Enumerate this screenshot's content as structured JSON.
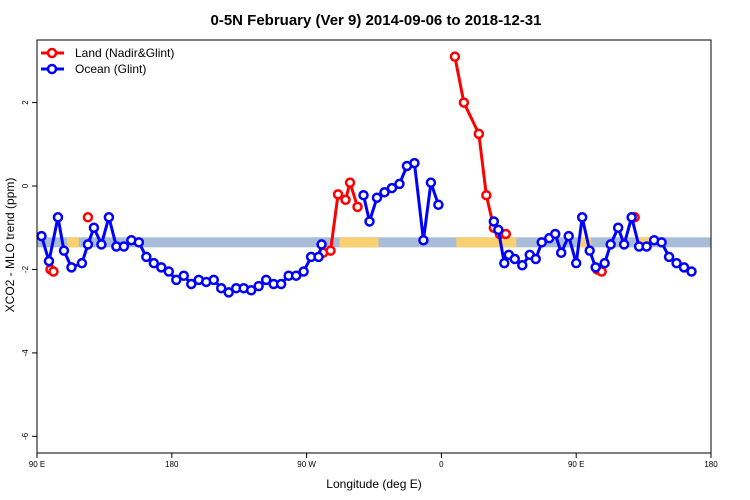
{
  "chart_data": {
    "type": "line",
    "title": "0-5N February (Ver 9)   2014-09-06 to 2018-12-31",
    "xlabel": "Longitude (deg E)",
    "ylabel": "XCO2 - MLO trend (ppm)",
    "x_ticks": [
      {
        "value": 90,
        "label": "90 E"
      },
      {
        "value": 180,
        "label": "180"
      },
      {
        "value": 270,
        "label": "90 W"
      },
      {
        "value": 360,
        "label": "0"
      },
      {
        "value": 450,
        "label": "90 E"
      },
      {
        "value": 540,
        "label": "180"
      }
    ],
    "y_ticks": [
      2,
      0,
      -2,
      -4,
      -6
    ],
    "xlim": [
      90,
      540
    ],
    "ylim": [
      -6.4,
      3.5
    ],
    "grid": false,
    "legend_position": "top-left",
    "land_mask_colors": {
      "ocean": "#a8bcd8",
      "land": "#f8d070"
    },
    "land_mask_y": -1.35,
    "land_segments": [
      [
        110,
        118
      ],
      [
        292,
        318
      ],
      [
        370,
        410
      ],
      [
        452,
        460
      ],
      [
        491,
        500
      ]
    ],
    "series": [
      {
        "name": "Land (Nadir&Glint)",
        "color": "#ff0000",
        "points": [
          [
            99,
            -2.0
          ],
          [
            101,
            -2.05
          ],
          [
            124,
            -0.75
          ],
          [
            281,
            -1.6
          ],
          [
            286,
            -1.55
          ],
          [
            291,
            -0.2
          ],
          [
            296,
            -0.33
          ],
          [
            299,
            0.08
          ],
          [
            304,
            -0.5
          ],
          [
            369,
            3.1
          ],
          [
            375,
            2.0
          ],
          [
            385,
            1.25
          ],
          [
            390,
            -0.22
          ],
          [
            395,
            -1.0
          ],
          [
            399,
            -1.15
          ],
          [
            403,
            -1.15
          ],
          [
            464,
            -2.0
          ],
          [
            467,
            -2.05
          ],
          [
            489,
            -0.75
          ]
        ]
      },
      {
        "name": "Ocean (Glint)",
        "color": "#0000ff",
        "points": [
          [
            93,
            -1.2
          ],
          [
            98,
            -1.8
          ],
          [
            104,
            -0.75
          ],
          [
            108,
            -1.55
          ],
          [
            113,
            -1.95
          ],
          [
            120,
            -1.85
          ],
          [
            124,
            -1.4
          ],
          [
            128,
            -1.0
          ],
          [
            133,
            -1.4
          ],
          [
            138,
            -0.75
          ],
          [
            143,
            -1.45
          ],
          [
            148,
            -1.45
          ],
          [
            153,
            -1.3
          ],
          [
            158,
            -1.35
          ],
          [
            163,
            -1.7
          ],
          [
            168,
            -1.85
          ],
          [
            173,
            -1.95
          ],
          [
            178,
            -2.05
          ],
          [
            183,
            -2.25
          ],
          [
            188,
            -2.15
          ],
          [
            193,
            -2.35
          ],
          [
            198,
            -2.25
          ],
          [
            203,
            -2.3
          ],
          [
            208,
            -2.25
          ],
          [
            213,
            -2.45
          ],
          [
            218,
            -2.55
          ],
          [
            223,
            -2.45
          ],
          [
            228,
            -2.45
          ],
          [
            233,
            -2.5
          ],
          [
            238,
            -2.4
          ],
          [
            243,
            -2.25
          ],
          [
            248,
            -2.35
          ],
          [
            253,
            -2.35
          ],
          [
            258,
            -2.15
          ],
          [
            263,
            -2.15
          ],
          [
            268,
            -2.05
          ],
          [
            273,
            -1.7
          ],
          [
            278,
            -1.7
          ],
          [
            280,
            -1.4
          ],
          [
            308,
            -0.22
          ],
          [
            312,
            -0.85
          ],
          [
            317,
            -0.28
          ],
          [
            322,
            -0.15
          ],
          [
            327,
            -0.05
          ],
          [
            332,
            0.05
          ],
          [
            337,
            0.48
          ],
          [
            342,
            0.55
          ],
          [
            348,
            -1.3
          ],
          [
            353,
            0.08
          ],
          [
            358,
            -0.45
          ],
          [
            395,
            -0.85
          ],
          [
            398,
            -1.05
          ],
          [
            402,
            -1.85
          ],
          [
            405,
            -1.65
          ],
          [
            409,
            -1.75
          ],
          [
            414,
            -1.9
          ],
          [
            419,
            -1.65
          ],
          [
            423,
            -1.75
          ],
          [
            427,
            -1.35
          ],
          [
            432,
            -1.25
          ],
          [
            436,
            -1.15
          ],
          [
            440,
            -1.6
          ],
          [
            445,
            -1.2
          ],
          [
            450,
            -1.85
          ],
          [
            454,
            -0.75
          ],
          [
            459,
            -1.55
          ],
          [
            463,
            -1.95
          ],
          [
            469,
            -1.85
          ],
          [
            473,
            -1.4
          ],
          [
            478,
            -1.0
          ],
          [
            482,
            -1.4
          ],
          [
            487,
            -0.75
          ],
          [
            492,
            -1.45
          ],
          [
            497,
            -1.45
          ],
          [
            502,
            -1.3
          ],
          [
            507,
            -1.35
          ],
          [
            512,
            -1.7
          ],
          [
            517,
            -1.85
          ],
          [
            522,
            -1.95
          ],
          [
            527,
            -2.05
          ]
        ]
      }
    ]
  }
}
